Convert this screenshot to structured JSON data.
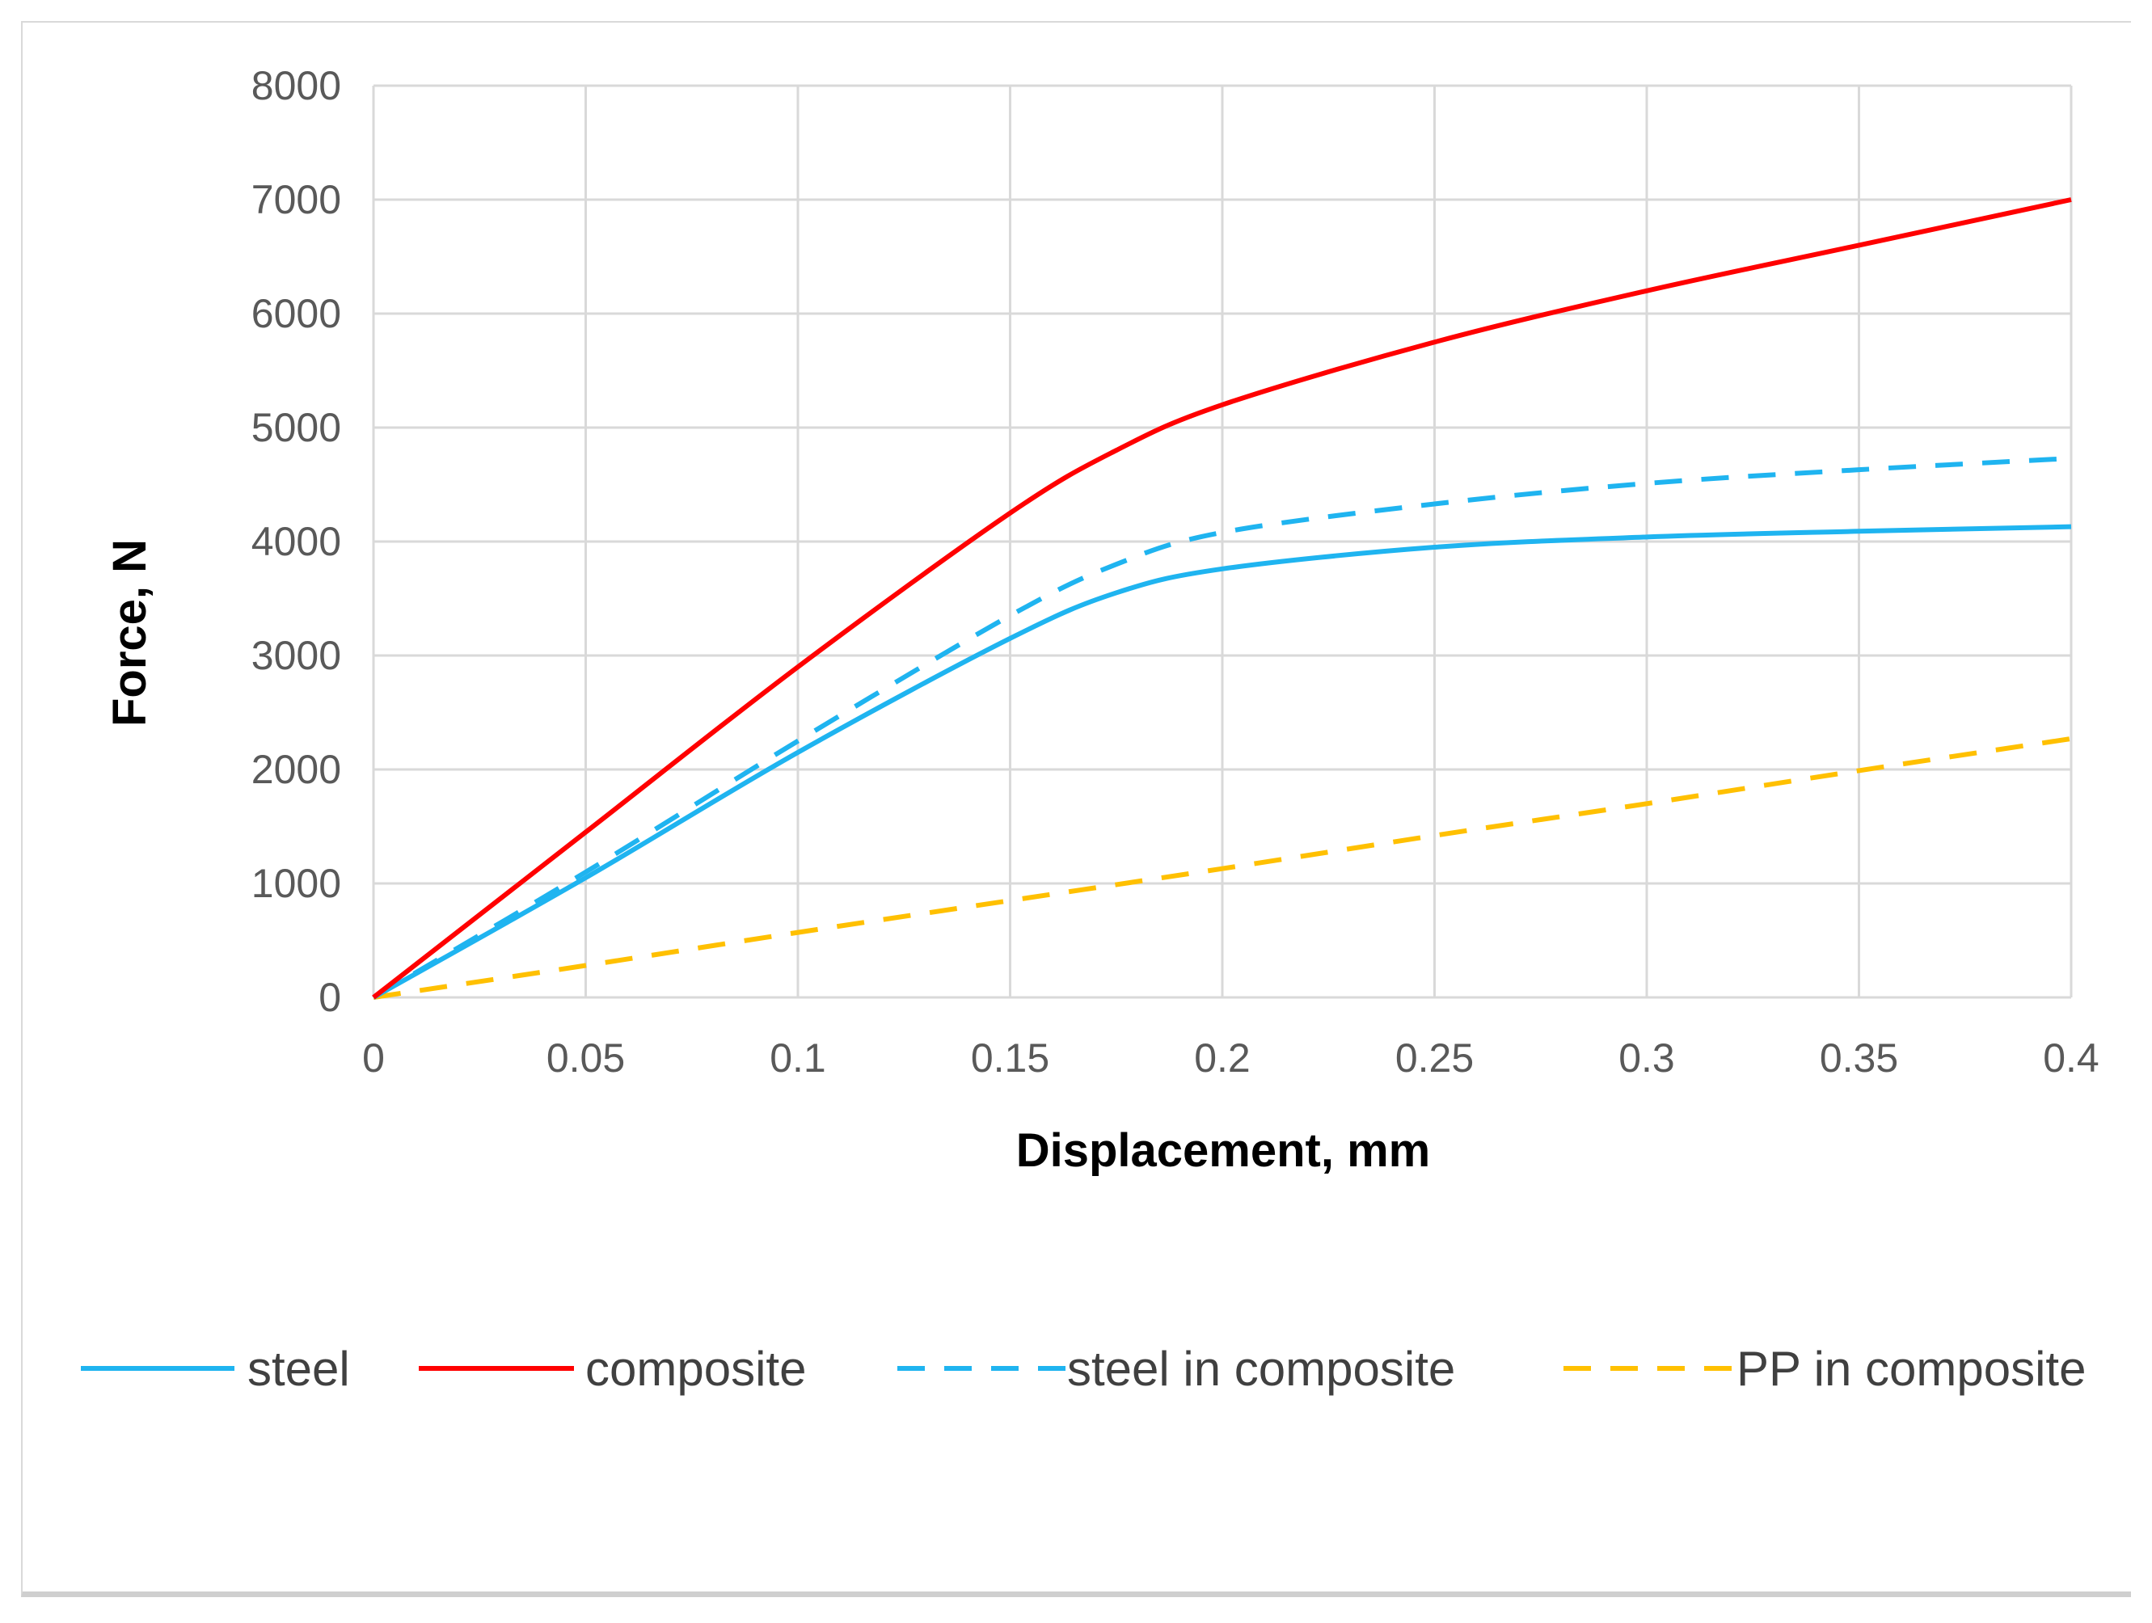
{
  "chart_data": {
    "type": "line",
    "title": "",
    "xlabel": "Displacement, mm",
    "ylabel": "Force, N",
    "xlim": [
      0,
      0.4
    ],
    "ylim": [
      0,
      8000
    ],
    "x_ticks": [
      0,
      0.05,
      0.1,
      0.15,
      0.2,
      0.25,
      0.3,
      0.35,
      0.4
    ],
    "x_tick_labels": [
      "0",
      "0.05",
      "0.1",
      "0.15",
      "0.2",
      "0.25",
      "0.3",
      "0.35",
      "0.4"
    ],
    "y_ticks": [
      0,
      1000,
      2000,
      3000,
      4000,
      5000,
      6000,
      7000,
      8000
    ],
    "y_tick_labels": [
      "0",
      "1000",
      "2000",
      "3000",
      "4000",
      "5000",
      "6000",
      "7000",
      "8000"
    ],
    "grid": true,
    "legend_position": "bottom",
    "series": [
      {
        "name": "steel",
        "color": "#1fb4f0",
        "dash": "solid",
        "points": [
          [
            0,
            0
          ],
          [
            0.05,
            1050
          ],
          [
            0.1,
            2150
          ],
          [
            0.15,
            3150
          ],
          [
            0.175,
            3550
          ],
          [
            0.2,
            3760
          ],
          [
            0.25,
            3950
          ],
          [
            0.3,
            4040
          ],
          [
            0.35,
            4090
          ],
          [
            0.4,
            4130
          ]
        ]
      },
      {
        "name": "composite",
        "color": "#ff0000",
        "dash": "solid",
        "points": [
          [
            0,
            0
          ],
          [
            0.05,
            1450
          ],
          [
            0.1,
            2900
          ],
          [
            0.15,
            4250
          ],
          [
            0.175,
            4800
          ],
          [
            0.2,
            5200
          ],
          [
            0.25,
            5750
          ],
          [
            0.3,
            6200
          ],
          [
            0.35,
            6600
          ],
          [
            0.4,
            7000
          ]
        ]
      },
      {
        "name": "steel in composite",
        "color": "#1fb4f0",
        "dash": "dashed",
        "points": [
          [
            0,
            0
          ],
          [
            0.05,
            1100
          ],
          [
            0.1,
            2250
          ],
          [
            0.15,
            3350
          ],
          [
            0.175,
            3800
          ],
          [
            0.2,
            4080
          ],
          [
            0.25,
            4330
          ],
          [
            0.3,
            4510
          ],
          [
            0.35,
            4630
          ],
          [
            0.4,
            4730
          ]
        ]
      },
      {
        "name": "PP in composite",
        "color": "#ffc000",
        "dash": "dashed",
        "points": [
          [
            0,
            0
          ],
          [
            0.05,
            280
          ],
          [
            0.1,
            570
          ],
          [
            0.15,
            850
          ],
          [
            0.2,
            1130
          ],
          [
            0.25,
            1420
          ],
          [
            0.3,
            1700
          ],
          [
            0.35,
            1990
          ],
          [
            0.4,
            2270
          ]
        ]
      }
    ]
  }
}
